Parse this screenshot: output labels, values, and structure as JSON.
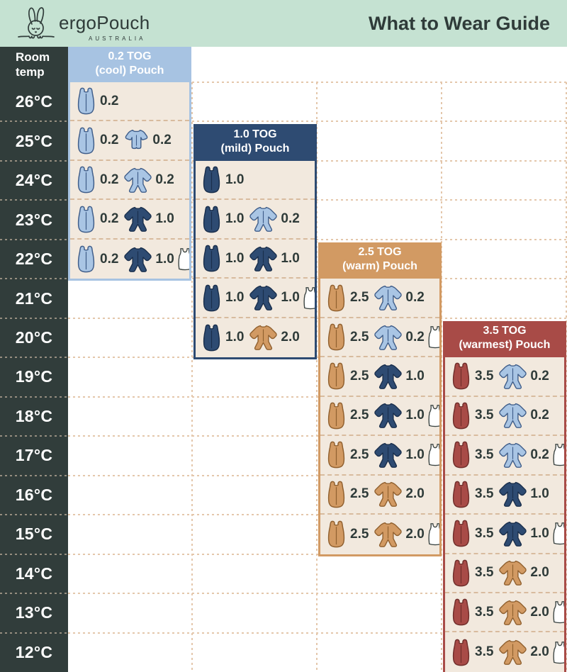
{
  "page": {
    "brand": "ergoPouch",
    "brand_sub": "AUSTRALIA",
    "title": "What to Wear Guide"
  },
  "temp_column": {
    "header_line1": "Room",
    "header_line2": "temp",
    "temps": [
      "26°C",
      "25°C",
      "24°C",
      "23°C",
      "22°C",
      "21°C",
      "20°C",
      "19°C",
      "18°C",
      "17°C",
      "16°C",
      "15°C",
      "14°C",
      "13°C",
      "12°C"
    ]
  },
  "colors": {
    "mint": "#c5e2d2",
    "charcoal": "#313d3b",
    "text_dark": "#2f3b39",
    "cream": "#f2e9de",
    "grid_dash": "#e4c7ab",
    "panel_dash": "#d8bb9e",
    "temp_sep_dash": "#e9d1b8",
    "panel_colors": {
      "lightblue": "#a7c3e2",
      "navy": "#2e4b72",
      "tan": "#d29a63",
      "maroon": "#a84b47"
    },
    "variants": {
      "lightblue": {
        "fill": "#a9c5e4",
        "stroke": "#3f5d89"
      },
      "navy": {
        "fill": "#2e4b72",
        "stroke": "#1a2f4c"
      },
      "tan": {
        "fill": "#d29a63",
        "stroke": "#90602f"
      },
      "maroon": {
        "fill": "#a84b47",
        "stroke": "#702e2b"
      },
      "white": {
        "fill": "#ffffff",
        "stroke": "#3c4543"
      }
    }
  },
  "chart_data": {
    "type": "table",
    "title": "What to Wear Guide",
    "row_header": "Room temp",
    "row_labels": [
      "26°C",
      "25°C",
      "24°C",
      "23°C",
      "22°C",
      "21°C",
      "20°C",
      "19°C",
      "18°C",
      "17°C",
      "16°C",
      "15°C",
      "14°C",
      "13°C",
      "12°C"
    ],
    "columns": [
      "0.2 TOG (cool) Pouch",
      "1.0 TOG (mild) Pouch",
      "2.5 TOG (warm) Pouch",
      "3.5 TOG (warmest) Pouch"
    ],
    "panels": [
      {
        "name": "0.2 TOG (cool) Pouch",
        "title_line1": "0.2 TOG",
        "title_line2": "(cool) Pouch",
        "color_key": "lightblue",
        "header_row": -1,
        "rows": [
          {
            "temp": "26°C",
            "items": [
              {
                "icon": "pouch",
                "variant": "lightblue",
                "tog": "0.2"
              }
            ]
          },
          {
            "temp": "25°C",
            "items": [
              {
                "icon": "pouch",
                "variant": "lightblue",
                "tog": "0.2"
              },
              {
                "icon": "romper",
                "variant": "lightblue",
                "tog": "0.2"
              }
            ]
          },
          {
            "temp": "24°C",
            "items": [
              {
                "icon": "pouch",
                "variant": "lightblue",
                "tog": "0.2"
              },
              {
                "icon": "sleepsuit",
                "variant": "lightblue",
                "tog": "0.2"
              }
            ]
          },
          {
            "temp": "23°C",
            "items": [
              {
                "icon": "pouch",
                "variant": "lightblue",
                "tog": "0.2"
              },
              {
                "icon": "sleepsuit",
                "variant": "navy",
                "tog": "1.0"
              }
            ]
          },
          {
            "temp": "22°C",
            "items": [
              {
                "icon": "pouch",
                "variant": "lightblue",
                "tog": "0.2"
              },
              {
                "icon": "sleepsuit",
                "variant": "navy",
                "tog": "1.0"
              },
              {
                "icon": "singlet",
                "variant": "white",
                "tog": null
              }
            ]
          }
        ]
      },
      {
        "name": "1.0 TOG (mild) Pouch",
        "title_line1": "1.0 TOG",
        "title_line2": "(mild) Pouch",
        "color_key": "navy",
        "header_row": 1,
        "rows": [
          {
            "temp": "24°C",
            "items": [
              {
                "icon": "pouch",
                "variant": "navy",
                "tog": "1.0"
              }
            ]
          },
          {
            "temp": "23°C",
            "items": [
              {
                "icon": "pouch",
                "variant": "navy",
                "tog": "1.0"
              },
              {
                "icon": "sleepsuit",
                "variant": "lightblue",
                "tog": "0.2"
              }
            ]
          },
          {
            "temp": "22°C",
            "items": [
              {
                "icon": "pouch",
                "variant": "navy",
                "tog": "1.0"
              },
              {
                "icon": "sleepsuit",
                "variant": "navy",
                "tog": "1.0"
              }
            ]
          },
          {
            "temp": "21°C",
            "items": [
              {
                "icon": "pouch",
                "variant": "navy",
                "tog": "1.0"
              },
              {
                "icon": "sleepsuit",
                "variant": "navy",
                "tog": "1.0"
              },
              {
                "icon": "singlet",
                "variant": "white",
                "tog": null
              }
            ]
          },
          {
            "temp": "20°C",
            "items": [
              {
                "icon": "pouch",
                "variant": "navy",
                "tog": "1.0"
              },
              {
                "icon": "sleepsuit",
                "variant": "tan",
                "tog": "2.0"
              }
            ]
          }
        ]
      },
      {
        "name": "2.5 TOG (warm) Pouch",
        "title_line1": "2.5 TOG",
        "title_line2": "(warm) Pouch",
        "color_key": "tan",
        "header_row": 4,
        "rows": [
          {
            "temp": "21°C",
            "items": [
              {
                "icon": "pouch",
                "variant": "tan",
                "tog": "2.5"
              },
              {
                "icon": "sleepsuit",
                "variant": "lightblue",
                "tog": "0.2"
              }
            ]
          },
          {
            "temp": "20°C",
            "items": [
              {
                "icon": "pouch",
                "variant": "tan",
                "tog": "2.5"
              },
              {
                "icon": "sleepsuit",
                "variant": "lightblue",
                "tog": "0.2"
              },
              {
                "icon": "singlet",
                "variant": "white",
                "tog": null
              }
            ]
          },
          {
            "temp": "19°C",
            "items": [
              {
                "icon": "pouch",
                "variant": "tan",
                "tog": "2.5"
              },
              {
                "icon": "sleepsuit",
                "variant": "navy",
                "tog": "1.0"
              }
            ]
          },
          {
            "temp": "18°C",
            "items": [
              {
                "icon": "pouch",
                "variant": "tan",
                "tog": "2.5"
              },
              {
                "icon": "sleepsuit",
                "variant": "navy",
                "tog": "1.0"
              },
              {
                "icon": "singlet",
                "variant": "white",
                "tog": null
              }
            ]
          },
          {
            "temp": "17°C",
            "items": [
              {
                "icon": "pouch",
                "variant": "tan",
                "tog": "2.5"
              },
              {
                "icon": "sleepsuit",
                "variant": "navy",
                "tog": "1.0"
              },
              {
                "icon": "singlet",
                "variant": "white",
                "tog": null
              }
            ]
          },
          {
            "temp": "16°C",
            "items": [
              {
                "icon": "pouch",
                "variant": "tan",
                "tog": "2.5"
              },
              {
                "icon": "sleepsuit",
                "variant": "tan",
                "tog": "2.0"
              }
            ]
          },
          {
            "temp": "15°C",
            "items": [
              {
                "icon": "pouch",
                "variant": "tan",
                "tog": "2.5"
              },
              {
                "icon": "sleepsuit",
                "variant": "tan",
                "tog": "2.0"
              },
              {
                "icon": "singlet",
                "variant": "white",
                "tog": null
              }
            ]
          }
        ]
      },
      {
        "name": "3.5 TOG (warmest) Pouch",
        "title_line1": "3.5 TOG",
        "title_line2": "(warmest) Pouch",
        "color_key": "maroon",
        "header_row": 6,
        "rows": [
          {
            "temp": "19°C",
            "items": [
              {
                "icon": "pouch",
                "variant": "maroon",
                "tog": "3.5"
              },
              {
                "icon": "sleepsuit",
                "variant": "lightblue",
                "tog": "0.2"
              }
            ]
          },
          {
            "temp": "18°C",
            "items": [
              {
                "icon": "pouch",
                "variant": "maroon",
                "tog": "3.5"
              },
              {
                "icon": "sleepsuit",
                "variant": "lightblue",
                "tog": "0.2"
              }
            ]
          },
          {
            "temp": "17°C",
            "items": [
              {
                "icon": "pouch",
                "variant": "maroon",
                "tog": "3.5"
              },
              {
                "icon": "sleepsuit",
                "variant": "lightblue",
                "tog": "0.2"
              },
              {
                "icon": "singlet",
                "variant": "white",
                "tog": null
              }
            ]
          },
          {
            "temp": "16°C",
            "items": [
              {
                "icon": "pouch",
                "variant": "maroon",
                "tog": "3.5"
              },
              {
                "icon": "sleepsuit",
                "variant": "navy",
                "tog": "1.0"
              }
            ]
          },
          {
            "temp": "15°C",
            "items": [
              {
                "icon": "pouch",
                "variant": "maroon",
                "tog": "3.5"
              },
              {
                "icon": "sleepsuit",
                "variant": "navy",
                "tog": "1.0"
              },
              {
                "icon": "singlet",
                "variant": "white",
                "tog": null
              }
            ]
          },
          {
            "temp": "14°C",
            "items": [
              {
                "icon": "pouch",
                "variant": "maroon",
                "tog": "3.5"
              },
              {
                "icon": "sleepsuit",
                "variant": "tan",
                "tog": "2.0"
              }
            ]
          },
          {
            "temp": "13°C",
            "items": [
              {
                "icon": "pouch",
                "variant": "maroon",
                "tog": "3.5"
              },
              {
                "icon": "sleepsuit",
                "variant": "tan",
                "tog": "2.0"
              },
              {
                "icon": "singlet",
                "variant": "white",
                "tog": null
              }
            ]
          },
          {
            "temp": "12°C",
            "items": [
              {
                "icon": "pouch",
                "variant": "maroon",
                "tog": "3.5"
              },
              {
                "icon": "sleepsuit",
                "variant": "tan",
                "tog": "2.0"
              },
              {
                "icon": "singlet",
                "variant": "white",
                "tog": null
              }
            ]
          }
        ]
      }
    ]
  }
}
